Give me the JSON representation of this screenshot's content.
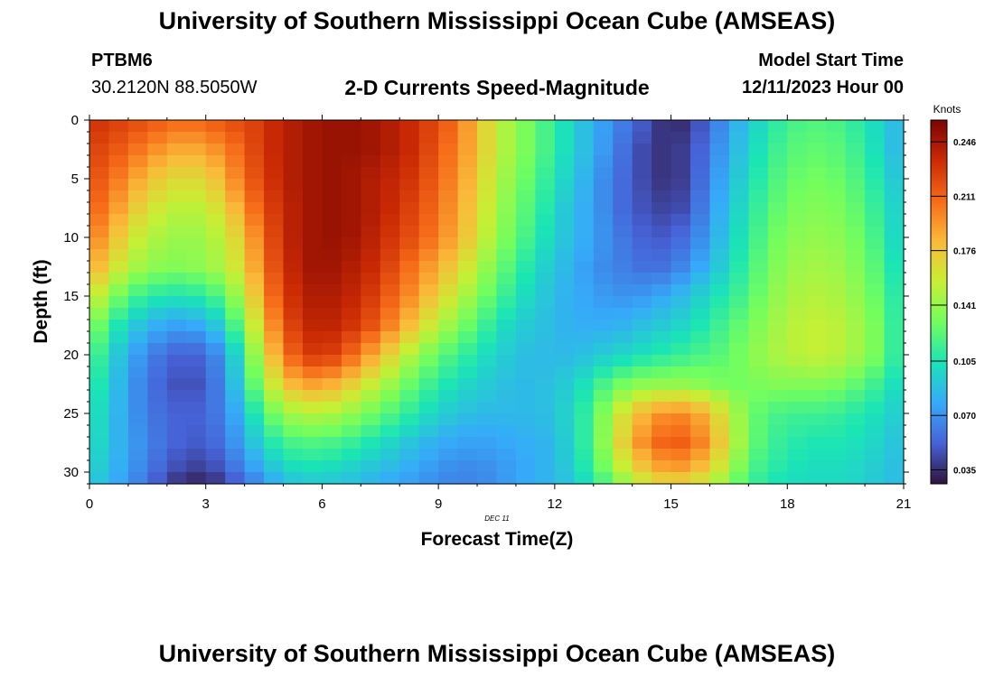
{
  "header": {
    "title": "University of Southern Mississippi Ocean Cube (AMSEAS)",
    "station": "PTBM6",
    "coords": "30.2120N  88.5050W",
    "subtitle": "2-D Currents Speed-Magnitude",
    "model_start_label": "Model Start Time",
    "model_start_value": "12/11/2023 Hour 00"
  },
  "footer": {
    "title": "University of Southern Mississippi Ocean Cube (AMSEAS)"
  },
  "colors": {
    "scale": [
      "#30123b",
      "#4662d7",
      "#36aaf9",
      "#1ae4b6",
      "#72fe5e",
      "#c7ef34",
      "#faba39",
      "#f66b19",
      "#cb2a04",
      "#7a0403"
    ]
  },
  "chart_data": {
    "type": "heatmap",
    "title": "2-D Currents Speed-Magnitude",
    "xlabel": "Forecast Time(Z)",
    "ylabel": "Depth (ft)",
    "x_ticks": [
      "0",
      "3",
      "6",
      "9",
      "12",
      "15",
      "18",
      "21"
    ],
    "y_ticks": [
      "0",
      "5",
      "10",
      "15",
      "20",
      "25",
      "30"
    ],
    "xlim": [
      0,
      21
    ],
    "ylim": [
      0,
      31
    ],
    "date_label": "DEC 11",
    "colorbar": {
      "label": "Knots",
      "range": [
        0.026,
        0.26
      ],
      "ticks": [
        "0.246",
        "0.211",
        "0.176",
        "0.141",
        "0.105",
        "0.070",
        "0.035"
      ]
    },
    "columns_hours": [
      0,
      0.5,
      1,
      1.5,
      2,
      2.5,
      3,
      3.5,
      4,
      4.5,
      5,
      5.5,
      6,
      6.5,
      7,
      7.5,
      8,
      8.5,
      9,
      9.5,
      10,
      10.5,
      11,
      11.5,
      12,
      12.5,
      13,
      13.5,
      14,
      14.5,
      15,
      15.5,
      16,
      16.5,
      17,
      17.5,
      18,
      18.5,
      19,
      19.5,
      20,
      20.5,
      21
    ],
    "depths_ft": [
      0,
      2.5,
      5,
      7.5,
      10,
      12.5,
      15,
      17.5,
      20,
      22.5,
      25,
      27.5,
      30,
      31
    ],
    "values": [
      [
        0.23,
        0.23,
        0.22,
        0.22,
        0.21,
        0.21,
        0.21,
        0.22,
        0.22,
        0.23,
        0.24,
        0.245,
        0.25,
        0.25,
        0.25,
        0.245,
        0.24,
        0.23,
        0.22,
        0.205,
        0.18,
        0.155,
        0.14,
        0.125,
        0.11,
        0.095,
        0.08,
        0.07,
        0.055,
        0.045,
        0.03,
        0.04,
        0.055,
        0.075,
        0.09,
        0.105,
        0.115,
        0.12,
        0.12,
        0.115,
        0.105,
        0.095,
        0.08
      ],
      [
        0.225,
        0.22,
        0.21,
        0.2,
        0.19,
        0.185,
        0.19,
        0.2,
        0.215,
        0.23,
        0.24,
        0.245,
        0.25,
        0.25,
        0.25,
        0.245,
        0.24,
        0.23,
        0.215,
        0.2,
        0.18,
        0.155,
        0.14,
        0.125,
        0.11,
        0.095,
        0.08,
        0.065,
        0.05,
        0.04,
        0.035,
        0.045,
        0.06,
        0.08,
        0.095,
        0.11,
        0.12,
        0.125,
        0.125,
        0.12,
        0.11,
        0.095,
        0.08
      ],
      [
        0.22,
        0.21,
        0.195,
        0.18,
        0.17,
        0.165,
        0.17,
        0.185,
        0.21,
        0.225,
        0.24,
        0.245,
        0.25,
        0.25,
        0.245,
        0.24,
        0.235,
        0.225,
        0.21,
        0.195,
        0.175,
        0.15,
        0.135,
        0.12,
        0.105,
        0.09,
        0.075,
        0.06,
        0.05,
        0.04,
        0.035,
        0.045,
        0.065,
        0.085,
        0.1,
        0.115,
        0.125,
        0.13,
        0.13,
        0.125,
        0.115,
        0.1,
        0.085
      ],
      [
        0.215,
        0.2,
        0.18,
        0.165,
        0.155,
        0.15,
        0.155,
        0.17,
        0.195,
        0.22,
        0.235,
        0.245,
        0.25,
        0.25,
        0.245,
        0.24,
        0.23,
        0.22,
        0.205,
        0.19,
        0.17,
        0.145,
        0.13,
        0.115,
        0.1,
        0.085,
        0.075,
        0.06,
        0.05,
        0.045,
        0.04,
        0.05,
        0.07,
        0.09,
        0.105,
        0.12,
        0.13,
        0.135,
        0.135,
        0.13,
        0.12,
        0.105,
        0.09
      ],
      [
        0.205,
        0.185,
        0.165,
        0.15,
        0.145,
        0.14,
        0.145,
        0.155,
        0.18,
        0.21,
        0.235,
        0.245,
        0.25,
        0.25,
        0.245,
        0.235,
        0.225,
        0.215,
        0.2,
        0.185,
        0.165,
        0.14,
        0.125,
        0.11,
        0.095,
        0.085,
        0.075,
        0.065,
        0.055,
        0.05,
        0.05,
        0.06,
        0.075,
        0.095,
        0.11,
        0.125,
        0.135,
        0.14,
        0.14,
        0.135,
        0.125,
        0.11,
        0.09
      ],
      [
        0.19,
        0.17,
        0.15,
        0.14,
        0.135,
        0.135,
        0.14,
        0.15,
        0.17,
        0.205,
        0.23,
        0.245,
        0.25,
        0.245,
        0.24,
        0.23,
        0.215,
        0.2,
        0.185,
        0.17,
        0.15,
        0.13,
        0.115,
        0.1,
        0.09,
        0.08,
        0.07,
        0.065,
        0.06,
        0.055,
        0.06,
        0.07,
        0.085,
        0.1,
        0.115,
        0.13,
        0.14,
        0.145,
        0.145,
        0.14,
        0.13,
        0.115,
        0.095
      ],
      [
        0.165,
        0.14,
        0.12,
        0.11,
        0.105,
        0.105,
        0.11,
        0.125,
        0.155,
        0.195,
        0.225,
        0.24,
        0.245,
        0.24,
        0.235,
        0.22,
        0.205,
        0.19,
        0.17,
        0.155,
        0.135,
        0.12,
        0.105,
        0.095,
        0.085,
        0.08,
        0.075,
        0.07,
        0.07,
        0.075,
        0.08,
        0.09,
        0.1,
        0.11,
        0.12,
        0.135,
        0.145,
        0.15,
        0.15,
        0.145,
        0.135,
        0.12,
        0.1
      ],
      [
        0.14,
        0.115,
        0.095,
        0.085,
        0.075,
        0.075,
        0.08,
        0.1,
        0.135,
        0.18,
        0.215,
        0.235,
        0.24,
        0.235,
        0.225,
        0.21,
        0.19,
        0.17,
        0.15,
        0.135,
        0.12,
        0.105,
        0.095,
        0.09,
        0.085,
        0.08,
        0.08,
        0.08,
        0.085,
        0.09,
        0.095,
        0.1,
        0.11,
        0.12,
        0.13,
        0.14,
        0.15,
        0.155,
        0.155,
        0.15,
        0.14,
        0.125,
        0.1
      ],
      [
        0.125,
        0.1,
        0.08,
        0.065,
        0.055,
        0.05,
        0.055,
        0.075,
        0.115,
        0.165,
        0.2,
        0.225,
        0.23,
        0.22,
        0.2,
        0.18,
        0.16,
        0.14,
        0.125,
        0.115,
        0.105,
        0.095,
        0.09,
        0.085,
        0.085,
        0.085,
        0.09,
        0.095,
        0.1,
        0.105,
        0.11,
        0.115,
        0.12,
        0.125,
        0.135,
        0.145,
        0.15,
        0.155,
        0.155,
        0.15,
        0.14,
        0.125,
        0.1
      ],
      [
        0.115,
        0.095,
        0.075,
        0.06,
        0.05,
        0.045,
        0.05,
        0.07,
        0.105,
        0.145,
        0.175,
        0.19,
        0.19,
        0.18,
        0.165,
        0.15,
        0.135,
        0.12,
        0.11,
        0.1,
        0.095,
        0.09,
        0.085,
        0.085,
        0.09,
        0.095,
        0.11,
        0.125,
        0.135,
        0.14,
        0.14,
        0.14,
        0.135,
        0.13,
        0.13,
        0.135,
        0.135,
        0.135,
        0.135,
        0.13,
        0.12,
        0.11,
        0.095
      ],
      [
        0.11,
        0.09,
        0.075,
        0.06,
        0.055,
        0.05,
        0.055,
        0.065,
        0.09,
        0.12,
        0.14,
        0.15,
        0.15,
        0.145,
        0.135,
        0.125,
        0.115,
        0.105,
        0.095,
        0.09,
        0.085,
        0.085,
        0.085,
        0.085,
        0.09,
        0.1,
        0.12,
        0.15,
        0.175,
        0.19,
        0.2,
        0.195,
        0.18,
        0.155,
        0.13,
        0.12,
        0.115,
        0.115,
        0.115,
        0.11,
        0.105,
        0.1,
        0.09
      ],
      [
        0.105,
        0.09,
        0.075,
        0.065,
        0.055,
        0.05,
        0.05,
        0.06,
        0.08,
        0.1,
        0.115,
        0.12,
        0.12,
        0.115,
        0.11,
        0.1,
        0.095,
        0.085,
        0.08,
        0.075,
        0.075,
        0.075,
        0.08,
        0.08,
        0.085,
        0.1,
        0.12,
        0.155,
        0.185,
        0.205,
        0.215,
        0.21,
        0.19,
        0.16,
        0.13,
        0.115,
        0.11,
        0.105,
        0.105,
        0.105,
        0.1,
        0.095,
        0.085
      ],
      [
        0.1,
        0.085,
        0.075,
        0.06,
        0.05,
        0.04,
        0.04,
        0.05,
        0.065,
        0.08,
        0.095,
        0.1,
        0.1,
        0.095,
        0.09,
        0.085,
        0.08,
        0.075,
        0.07,
        0.065,
        0.065,
        0.07,
        0.075,
        0.08,
        0.085,
        0.095,
        0.115,
        0.14,
        0.165,
        0.18,
        0.19,
        0.185,
        0.17,
        0.145,
        0.12,
        0.11,
        0.105,
        0.1,
        0.1,
        0.1,
        0.095,
        0.09,
        0.085
      ],
      [
        0.095,
        0.08,
        0.07,
        0.055,
        0.04,
        0.03,
        0.03,
        0.04,
        0.055,
        0.07,
        0.085,
        0.09,
        0.09,
        0.09,
        0.085,
        0.08,
        0.075,
        0.07,
        0.065,
        0.065,
        0.065,
        0.07,
        0.075,
        0.08,
        0.085,
        0.09,
        0.105,
        0.125,
        0.145,
        0.16,
        0.165,
        0.16,
        0.15,
        0.13,
        0.115,
        0.105,
        0.1,
        0.1,
        0.1,
        0.1,
        0.095,
        0.09,
        0.085
      ]
    ]
  }
}
